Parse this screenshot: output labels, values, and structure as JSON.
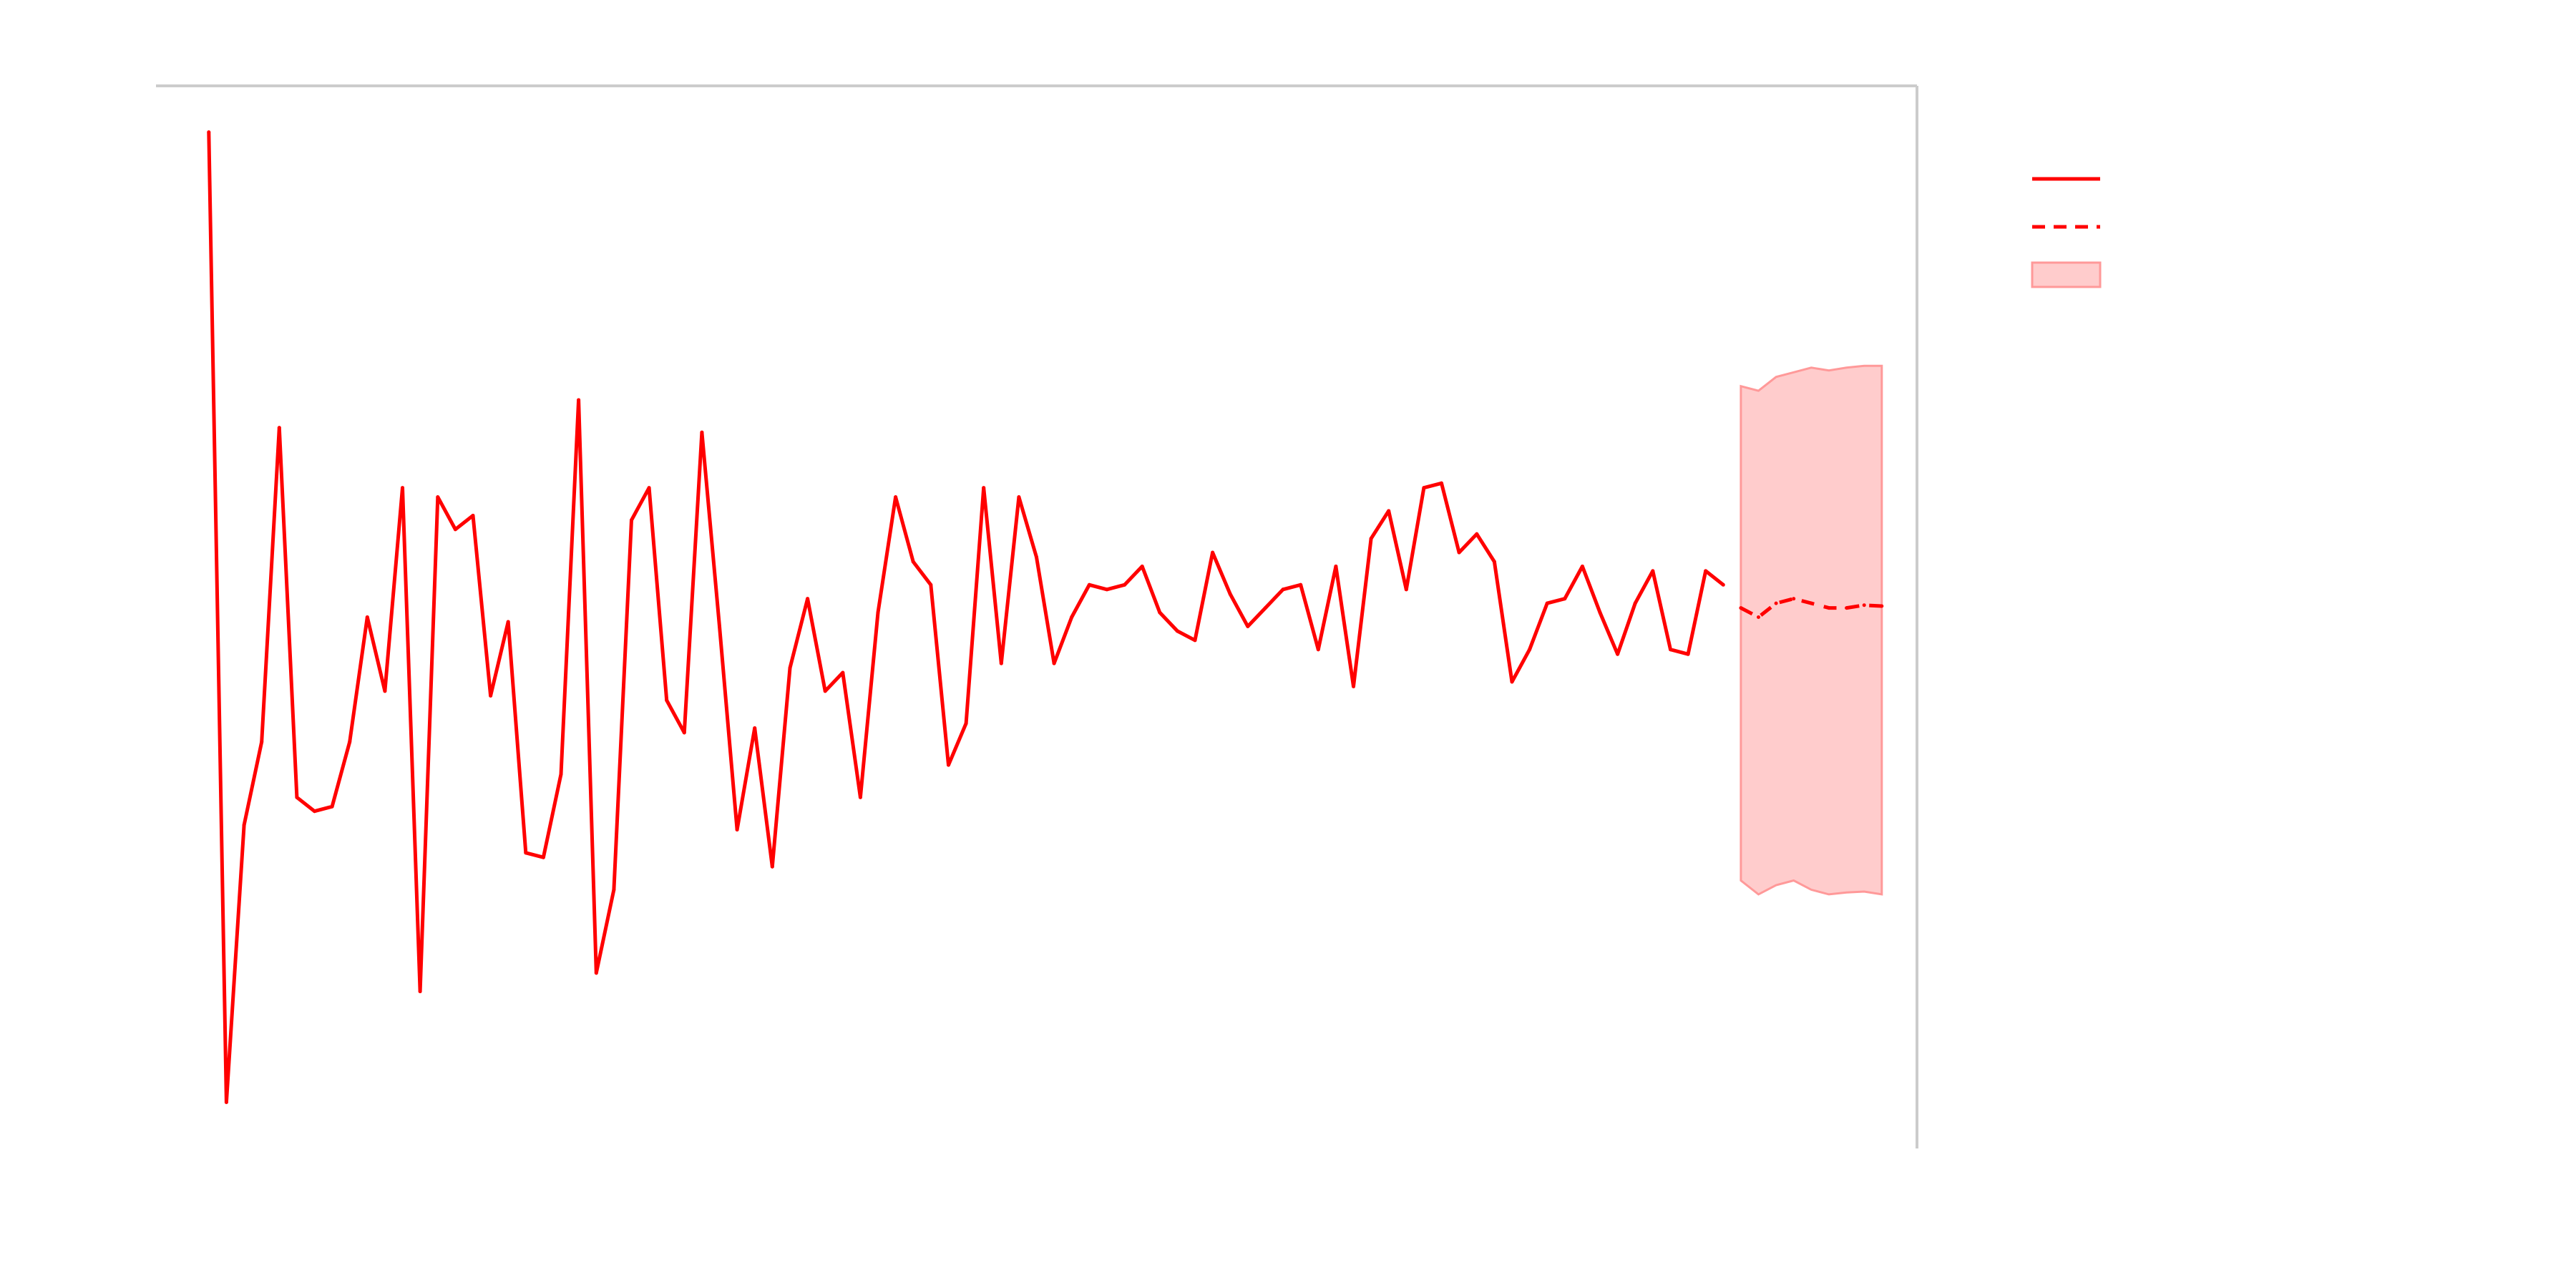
{
  "chart_data": {
    "type": "line",
    "title": "",
    "xlabel": "",
    "ylabel": "",
    "grid": false,
    "legend_position": "top-right",
    "xlim": [
      -3,
      97
    ],
    "ylim": [
      -5.5,
      6.0
    ],
    "colors": {
      "series": "#ff0000",
      "band_fill": "#ffcccc",
      "band_edge": "#ff9999",
      "axis": "#cccccc"
    },
    "series": [
      {
        "role": "observed",
        "style": "solid",
        "x": [
          0,
          1,
          2,
          3,
          4,
          5,
          6,
          7,
          8,
          9,
          10,
          11,
          12,
          13,
          14,
          15,
          16,
          17,
          18,
          19,
          20,
          21,
          22,
          23,
          24,
          25,
          26,
          27,
          28,
          29,
          30,
          31,
          32,
          33,
          34,
          35,
          36,
          37,
          38,
          39,
          40,
          41,
          42,
          43,
          44,
          45,
          46,
          47,
          48,
          49,
          50,
          51,
          52,
          53,
          54,
          55,
          56,
          57,
          58,
          59,
          60,
          61,
          62,
          63,
          64,
          65,
          66,
          67,
          68,
          69,
          70,
          71,
          72,
          73,
          74,
          75,
          76,
          77,
          78,
          79,
          80,
          81,
          82,
          83,
          84,
          85,
          86
        ],
        "values": [
          5.5,
          -5.0,
          -2.0,
          -1.1,
          2.3,
          -1.7,
          -1.85,
          -1.8,
          -1.1,
          0.25,
          -0.55,
          1.65,
          -3.8,
          1.55,
          1.2,
          1.35,
          -0.6,
          0.2,
          -2.3,
          -2.35,
          -1.45,
          2.6,
          -3.6,
          -2.7,
          1.3,
          1.65,
          -0.65,
          -1.0,
          2.25,
          0.15,
          -2.05,
          -0.95,
          -2.45,
          -0.3,
          0.45,
          -0.55,
          -0.35,
          -1.7,
          0.3,
          1.55,
          0.85,
          0.6,
          -1.35,
          -0.9,
          1.65,
          -0.25,
          1.55,
          0.9,
          -0.25,
          0.25,
          0.6,
          0.55,
          0.6,
          0.8,
          0.3,
          0.1,
          0.0,
          0.95,
          0.5,
          0.15,
          0.35,
          0.55,
          0.6,
          -0.1,
          0.8,
          -0.5,
          1.1,
          1.4,
          0.55,
          1.65,
          1.7,
          0.95,
          1.15,
          0.85,
          -0.45,
          -0.1,
          0.4,
          0.45,
          0.8,
          0.3,
          -0.15,
          0.4,
          0.75,
          -0.1,
          -0.15,
          0.75,
          0.6
        ]
      },
      {
        "role": "forecast",
        "style": "dashed",
        "x": [
          87,
          88,
          89,
          90,
          91,
          92,
          93,
          94,
          95
        ],
        "values": [
          0.35,
          0.25,
          0.4,
          0.45,
          0.4,
          0.35,
          0.35,
          0.38,
          0.37
        ]
      }
    ],
    "band": {
      "role": "confidence-interval",
      "x": [
        87,
        88,
        89,
        90,
        91,
        92,
        93,
        94,
        95
      ],
      "upper": [
        2.75,
        2.7,
        2.85,
        2.9,
        2.95,
        2.92,
        2.95,
        2.97,
        2.97
      ],
      "lower": [
        -2.6,
        -2.75,
        -2.65,
        -2.6,
        -2.7,
        -2.75,
        -2.73,
        -2.72,
        -2.75
      ]
    },
    "legend": {
      "entries": [
        {
          "kind": "line",
          "label": ""
        },
        {
          "kind": "dashed",
          "label": ""
        },
        {
          "kind": "band",
          "label": ""
        }
      ]
    }
  }
}
